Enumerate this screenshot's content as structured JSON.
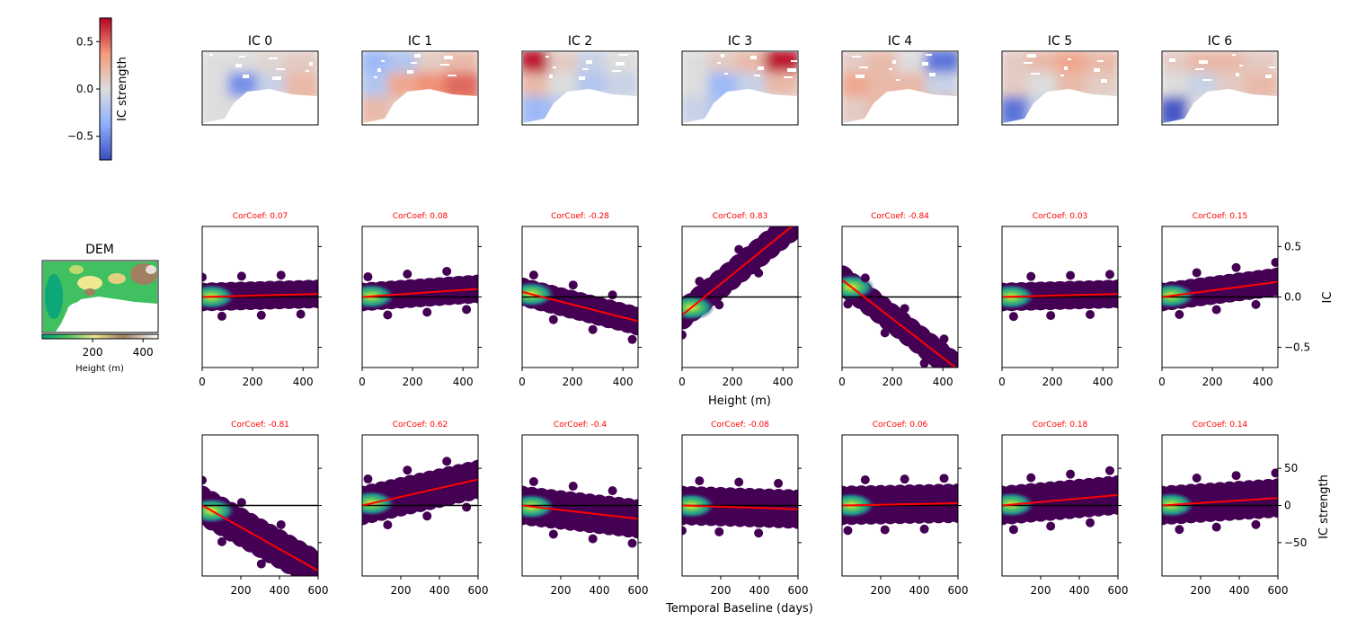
{
  "colorbar": {
    "label": "IC strength",
    "ticks": [
      0.5,
      0.0,
      -0.5
    ],
    "tick_labels": [
      "0.5",
      "0.0",
      "−0.5"
    ],
    "range": [
      -0.75,
      0.75
    ],
    "colormap": "coolwarm"
  },
  "dem": {
    "title": "DEM",
    "xlabel": "Height (m)",
    "tick_labels": [
      "200",
      "400"
    ],
    "range": [
      0,
      460
    ],
    "colormap": "terrain"
  },
  "colors": {
    "fit": "#ff0000",
    "zero_line": "#000000",
    "cor_label": "#ff0000",
    "density_low": "#440154",
    "density_high": "#fde725"
  },
  "row_height": {
    "xlabel": "Height (m)",
    "ylabel": "IC",
    "xlim": [
      0,
      460
    ],
    "ylim": [
      -0.7,
      0.7
    ],
    "x_tick_labels": [
      "0",
      "200",
      "400"
    ],
    "y_tick_labels": [
      "0.5",
      "0.0",
      "−0.5"
    ]
  },
  "row_baseline": {
    "xlabel": "Temporal Baseline (days)",
    "ylabel": "IC strength",
    "xlim": [
      0,
      600
    ],
    "ylim": [
      -95,
      95
    ],
    "x_tick_labels": [
      "200",
      "400",
      "600"
    ],
    "y_tick_labels": [
      "50",
      "0",
      "−50"
    ]
  },
  "chart_data": [
    {
      "type": "heatmap",
      "title": "IC 0",
      "cells": [
        [
          0.0,
          0.0,
          0.05,
          0.1
        ],
        [
          0.0,
          -0.5,
          -0.1,
          0.2
        ],
        [
          0.0,
          0.0,
          0.1,
          0.2
        ]
      ]
    },
    {
      "type": "heatmap",
      "title": "IC 1",
      "cells": [
        [
          -0.3,
          -0.2,
          0.1,
          0.2
        ],
        [
          -0.2,
          0.3,
          0.4,
          0.5
        ],
        [
          0.2,
          0.1,
          0.3,
          0.4
        ]
      ]
    },
    {
      "type": "heatmap",
      "title": "IC 2",
      "cells": [
        [
          0.7,
          0.1,
          -0.1,
          0.0
        ],
        [
          0.2,
          0.0,
          -0.2,
          -0.1
        ],
        [
          -0.3,
          -0.2,
          0.0,
          0.0
        ]
      ]
    },
    {
      "type": "heatmap",
      "title": "IC 3",
      "cells": [
        [
          0.0,
          0.1,
          0.2,
          0.7
        ],
        [
          0.0,
          -0.3,
          -0.1,
          0.2
        ],
        [
          -0.1,
          -0.2,
          -0.1,
          0.0
        ]
      ]
    },
    {
      "type": "heatmap",
      "title": "IC 4",
      "cells": [
        [
          0.1,
          0.2,
          0.0,
          -0.6
        ],
        [
          0.3,
          0.2,
          0.2,
          -0.1
        ],
        [
          0.1,
          0.2,
          0.3,
          0.2
        ]
      ]
    },
    {
      "type": "heatmap",
      "title": "IC 5",
      "cells": [
        [
          0.1,
          0.2,
          0.3,
          0.2
        ],
        [
          0.1,
          0.0,
          0.2,
          0.1
        ],
        [
          -0.6,
          -0.1,
          0.1,
          0.0
        ]
      ]
    },
    {
      "type": "heatmap",
      "title": "IC 6",
      "cells": [
        [
          0.1,
          0.2,
          0.2,
          0.1
        ],
        [
          0.0,
          -0.1,
          0.1,
          0.2
        ],
        [
          -0.7,
          0.0,
          0.1,
          0.1
        ]
      ]
    },
    {
      "type": "scatter",
      "title": "CorCoef: 0.07",
      "xlabel": "Height (m)",
      "ylabel": "IC",
      "xlim": [
        0,
        460
      ],
      "ylim": [
        -0.7,
        0.7
      ],
      "fit": [
        [
          0,
          0.0
        ],
        [
          460,
          0.03
        ]
      ]
    },
    {
      "type": "scatter",
      "title": "CorCoef: 0.08",
      "xlabel": "Height (m)",
      "ylabel": "IC",
      "xlim": [
        0,
        460
      ],
      "ylim": [
        -0.7,
        0.7
      ],
      "fit": [
        [
          0,
          0.0
        ],
        [
          460,
          0.08
        ]
      ]
    },
    {
      "type": "scatter",
      "title": "CorCoef: -0.28",
      "xlabel": "Height (m)",
      "ylabel": "IC",
      "xlim": [
        0,
        460
      ],
      "ylim": [
        -0.7,
        0.7
      ],
      "fit": [
        [
          0,
          0.05
        ],
        [
          460,
          -0.24
        ]
      ]
    },
    {
      "type": "scatter",
      "title": "CorCoef: 0.83",
      "xlabel": "Height (m)",
      "ylabel": "IC",
      "xlim": [
        0,
        460
      ],
      "ylim": [
        -0.7,
        0.7
      ],
      "fit": [
        [
          0,
          -0.18
        ],
        [
          460,
          0.75
        ]
      ]
    },
    {
      "type": "scatter",
      "title": "CorCoef: -0.84",
      "xlabel": "Height (m)",
      "ylabel": "IC",
      "xlim": [
        0,
        460
      ],
      "ylim": [
        -0.7,
        0.7
      ],
      "fit": [
        [
          0,
          0.17
        ],
        [
          460,
          -0.72
        ]
      ]
    },
    {
      "type": "scatter",
      "title": "CorCoef: 0.03",
      "xlabel": "Height (m)",
      "ylabel": "IC",
      "xlim": [
        0,
        460
      ],
      "ylim": [
        -0.7,
        0.7
      ],
      "fit": [
        [
          0,
          0.0
        ],
        [
          460,
          0.03
        ]
      ]
    },
    {
      "type": "scatter",
      "title": "CorCoef: 0.15",
      "xlabel": "Height (m)",
      "ylabel": "IC",
      "xlim": [
        0,
        460
      ],
      "ylim": [
        -0.7,
        0.7
      ],
      "fit": [
        [
          0,
          0.0
        ],
        [
          460,
          0.15
        ]
      ]
    },
    {
      "type": "scatter",
      "title": "CorCoef: -0.81",
      "xlabel": "Temporal Baseline (days)",
      "ylabel": "IC strength",
      "xlim": [
        0,
        600
      ],
      "ylim": [
        -95,
        95
      ],
      "fit": [
        [
          0,
          0
        ],
        [
          600,
          -88
        ]
      ]
    },
    {
      "type": "scatter",
      "title": "CorCoef: 0.62",
      "xlabel": "Temporal Baseline (days)",
      "ylabel": "IC strength",
      "xlim": [
        0,
        600
      ],
      "ylim": [
        -95,
        95
      ],
      "fit": [
        [
          0,
          0
        ],
        [
          600,
          35
        ]
      ]
    },
    {
      "type": "scatter",
      "title": "CorCoef: -0.4",
      "xlabel": "Temporal Baseline (days)",
      "ylabel": "IC strength",
      "xlim": [
        0,
        600
      ],
      "ylim": [
        -95,
        95
      ],
      "fit": [
        [
          0,
          0
        ],
        [
          600,
          -18
        ]
      ]
    },
    {
      "type": "scatter",
      "title": "CorCoef: -0.08",
      "xlabel": "Temporal Baseline (days)",
      "ylabel": "IC strength",
      "xlim": [
        0,
        600
      ],
      "ylim": [
        -95,
        95
      ],
      "fit": [
        [
          0,
          0
        ],
        [
          600,
          -5
        ]
      ]
    },
    {
      "type": "scatter",
      "title": "CorCoef: 0.06",
      "xlabel": "Temporal Baseline (days)",
      "ylabel": "IC strength",
      "xlim": [
        0,
        600
      ],
      "ylim": [
        -95,
        95
      ],
      "fit": [
        [
          0,
          0
        ],
        [
          600,
          3
        ]
      ]
    },
    {
      "type": "scatter",
      "title": "CorCoef: 0.18",
      "xlabel": "Temporal Baseline (days)",
      "ylabel": "IC strength",
      "xlim": [
        0,
        600
      ],
      "ylim": [
        -95,
        95
      ],
      "fit": [
        [
          0,
          0
        ],
        [
          600,
          14
        ]
      ]
    },
    {
      "type": "scatter",
      "title": "CorCoef: 0.14",
      "xlabel": "Temporal Baseline (days)",
      "ylabel": "IC strength",
      "xlim": [
        0,
        600
      ],
      "ylim": [
        -95,
        95
      ],
      "fit": [
        [
          0,
          0
        ],
        [
          600,
          10
        ]
      ]
    }
  ]
}
